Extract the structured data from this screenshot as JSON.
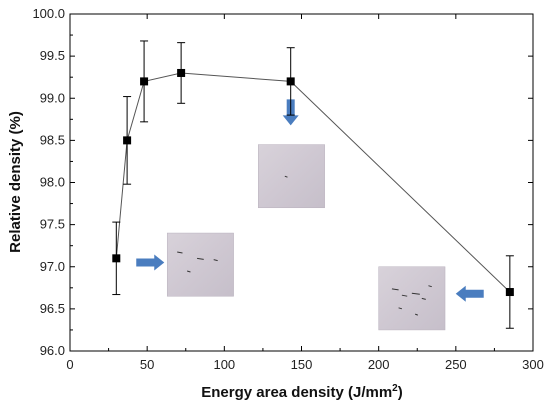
{
  "chart_data": {
    "type": "scatter",
    "xlabel": "Energy area density (J/mm",
    "xlabel_superscript": "2",
    "xlabel_suffix": ")",
    "ylabel": "Relative density (%)",
    "xlim": [
      0,
      300
    ],
    "ylim": [
      96.0,
      100.0
    ],
    "x_ticks": [
      0,
      50,
      100,
      150,
      200,
      250,
      300
    ],
    "x_tick_labels": [
      "0",
      "50",
      "100",
      "150",
      "200",
      "250",
      "300"
    ],
    "y_ticks": [
      96.0,
      96.5,
      97.0,
      97.5,
      98.0,
      98.5,
      99.0,
      99.5,
      100.0
    ],
    "y_tick_labels": [
      "96.0",
      "96.5",
      "97.0",
      "97.5",
      "98.0",
      "98.5",
      "99.0",
      "99.5",
      "100.0"
    ],
    "grid": false,
    "legend": "none",
    "series": [
      {
        "x": [
          30,
          37,
          48,
          72,
          143,
          285
        ],
        "y": [
          97.1,
          98.5,
          99.2,
          99.3,
          99.2,
          96.7
        ],
        "err": [
          0.43,
          0.52,
          0.48,
          0.36,
          0.4,
          0.43
        ],
        "marker": "square",
        "color": "#000000",
        "line_color": "#555555"
      }
    ],
    "insets": [
      {
        "name": "microstructure-inset-low",
        "x_range": [
          63,
          106
        ],
        "y_range": [
          96.65,
          97.4
        ],
        "defects": "few"
      },
      {
        "name": "microstructure-inset-mid",
        "x_range": [
          122,
          165
        ],
        "y_range": [
          97.7,
          98.45
        ],
        "defects": "none"
      },
      {
        "name": "microstructure-inset-high",
        "x_range": [
          200,
          243
        ],
        "y_range": [
          96.25,
          97.0
        ],
        "defects": "many"
      }
    ],
    "arrow_color": "#4a7dbf"
  }
}
